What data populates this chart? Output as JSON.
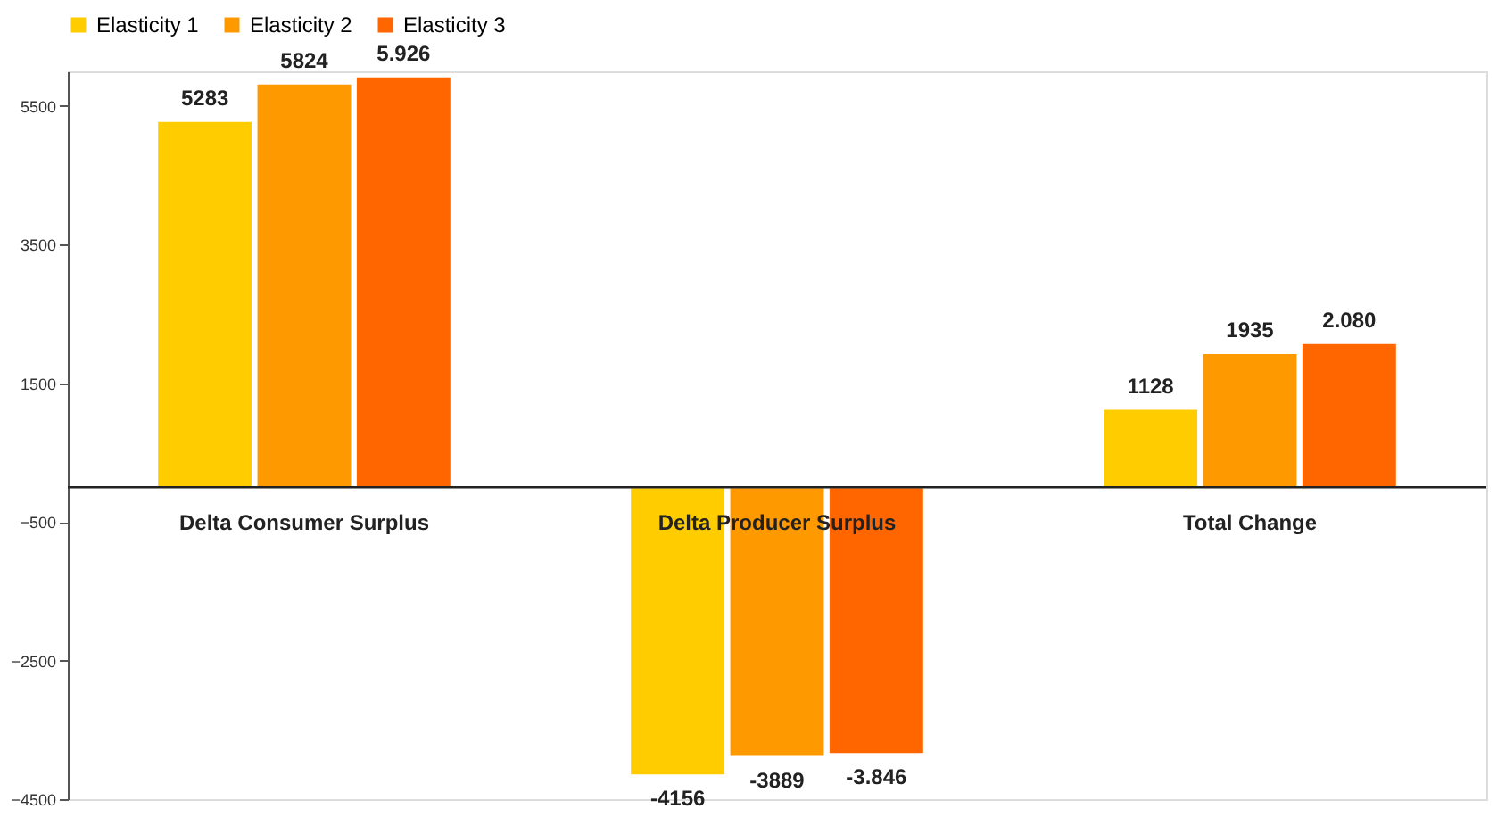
{
  "chart_data": {
    "type": "bar",
    "categories": [
      "Delta Consumer Surplus",
      "Delta Producer Surplus",
      "Total Change"
    ],
    "series": [
      {
        "name": "Elasticity 1",
        "color": "#ffcc00",
        "values": [
          5283,
          -4156,
          1128
        ],
        "value_labels": [
          "5283",
          "-4156",
          "1128"
        ]
      },
      {
        "name": "Elasticity 2",
        "color": "#ff9900",
        "values": [
          5824,
          -3889,
          1935
        ],
        "value_labels": [
          "5824",
          "-3889",
          "1935"
        ]
      },
      {
        "name": "Elasticity 3",
        "color": "#ff6600",
        "values": [
          5926,
          -3846,
          2080
        ],
        "value_labels": [
          "5.926",
          "-3.846",
          "2.080"
        ]
      }
    ],
    "ylim": [
      -4500,
      6000
    ],
    "yticks": [
      5500,
      3500,
      1500,
      -500,
      -2500,
      -4500
    ],
    "grid": false,
    "legend": "top"
  }
}
